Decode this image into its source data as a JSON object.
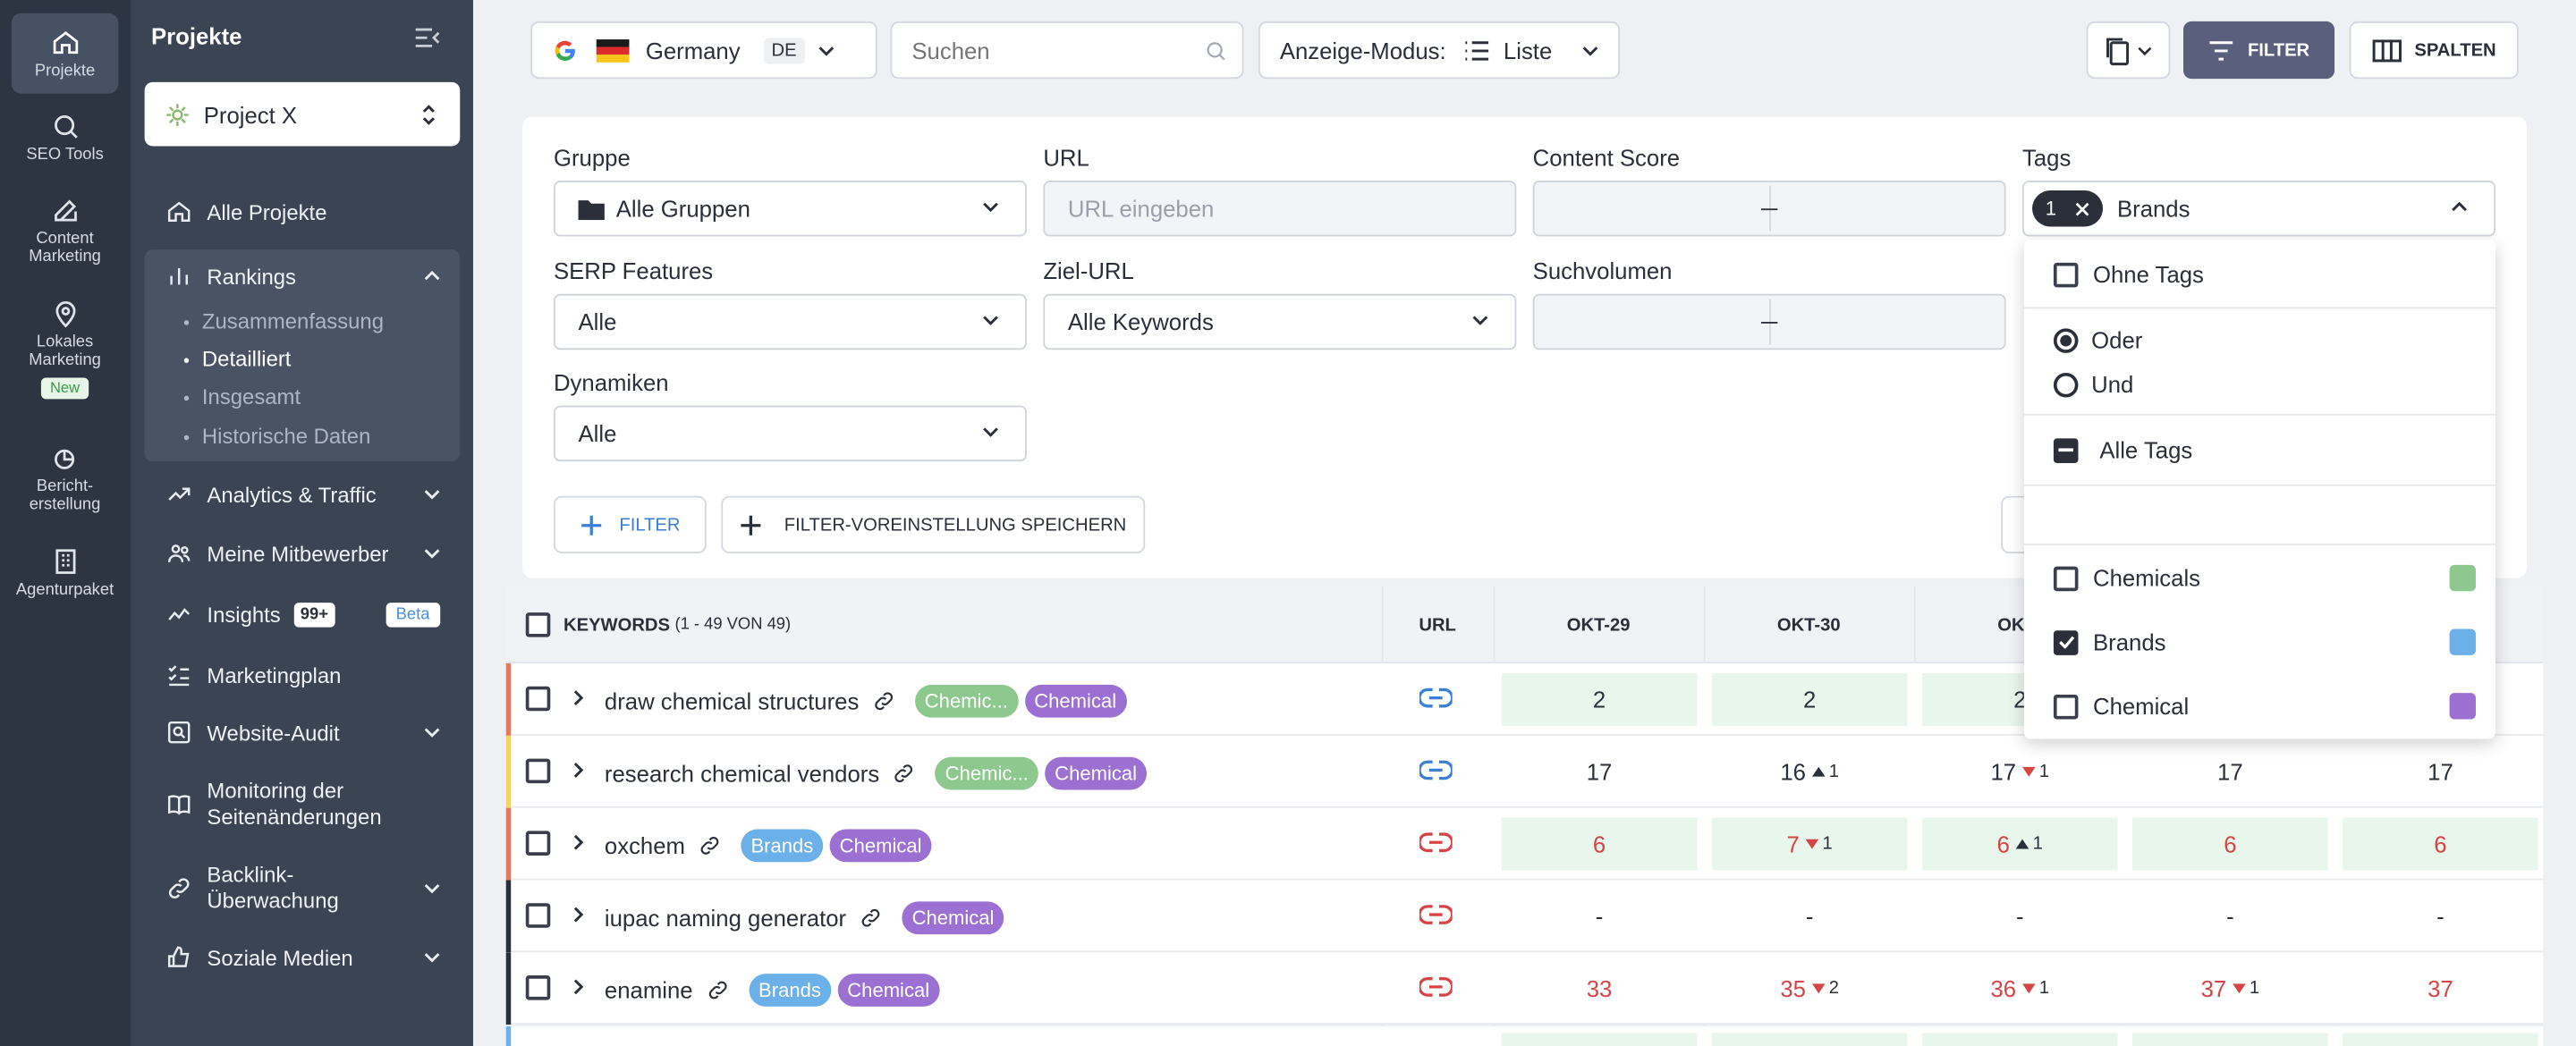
{
  "rail": {
    "items": [
      {
        "label": "Projekte",
        "icon": "home-icon"
      },
      {
        "label": "SEO Tools",
        "icon": "search-icon"
      },
      {
        "label": "Content Marketing",
        "icon": "edit-icon"
      },
      {
        "label": "Lokales Marketing",
        "icon": "map-pin-icon",
        "badge": "New"
      },
      {
        "label": "Bericht-erstellung",
        "icon": "report-icon"
      },
      {
        "label": "Agenturpaket",
        "icon": "building-icon"
      }
    ]
  },
  "sidebar": {
    "title": "Projekte",
    "project": "Project X",
    "nav": {
      "all_projects": "Alle Projekte",
      "rankings": "Rankings",
      "rankings_sub": [
        "Zusammenfassung",
        "Detailliert",
        "Insgesamt",
        "Historische Daten"
      ],
      "analytics": "Analytics & Traffic",
      "competitors": "Meine Mitbewerber",
      "insights": "Insights",
      "insights_badge": "99+",
      "insights_beta": "Beta",
      "marketing_plan": "Marketingplan",
      "website_audit": "Website-Audit",
      "monitoring": "Monitoring der Seitenänderungen",
      "backlinks": "Backlink-Überwachung",
      "social": "Soziale Medien"
    }
  },
  "topbar": {
    "country": "Germany",
    "country_code": "DE",
    "search_placeholder": "Suchen",
    "view_mode_label": "Anzeige-Modus:",
    "view_mode_value": "Liste",
    "filter_button": "FILTER",
    "columns_button": "SPALTEN"
  },
  "filters": {
    "group_label": "Gruppe",
    "group_value": "Alle Gruppen",
    "url_label": "URL",
    "url_placeholder": "URL eingeben",
    "content_score_label": "Content Score",
    "tags_label": "Tags",
    "tags_count": "1",
    "tags_value": "Brands",
    "serp_label": "SERP Features",
    "serp_value": "Alle",
    "target_url_label": "Ziel-URL",
    "target_url_value": "Alle Keywords",
    "volume_label": "Suchvolumen",
    "dynamics_label": "Dynamiken",
    "dynamics_value": "Alle",
    "add_filter": "FILTER",
    "save_preset": "FILTER-VOREINSTELLUNG SPEICHERN"
  },
  "tags_dropdown": {
    "no_tags": "Ohne Tags",
    "or": "Oder",
    "and": "Und",
    "all_tags": "Alle Tags",
    "options": [
      {
        "name": "Chemicals",
        "color": "#8dc98e",
        "checked": false
      },
      {
        "name": "Brands",
        "color": "#6cb0ea",
        "checked": true
      },
      {
        "name": "Chemical",
        "color": "#9c6fd3",
        "checked": false
      }
    ]
  },
  "table": {
    "keywords_header": "KEYWORDS",
    "keywords_count": "(1 - 49 VON 49)",
    "url_header": "URL",
    "date_headers": [
      "OKT-29",
      "OKT-30",
      "OKT-"
    ],
    "rows": [
      {
        "keyword": "draw chemical structures",
        "tags": [
          "Chemic...",
          "Chemical"
        ],
        "values": [
          "2",
          "2",
          "2",
          "",
          ""
        ],
        "deltas": [
          "",
          "",
          "",
          "",
          ""
        ]
      },
      {
        "keyword": "research chemical vendors",
        "tags": [
          "Chemic...",
          "Chemical"
        ],
        "values": [
          "17",
          "16",
          "17",
          "17",
          "17"
        ],
        "deltas": [
          "",
          "1",
          "1",
          "",
          ""
        ]
      },
      {
        "keyword": "oxchem",
        "tags": [
          "Brands",
          "Chemical"
        ],
        "values": [
          "6",
          "7",
          "6",
          "6",
          "6"
        ],
        "deltas": [
          "",
          "1",
          "1",
          "",
          ""
        ]
      },
      {
        "keyword": "iupac naming generator",
        "tags": [
          "Chemical"
        ],
        "values": [
          "-",
          "-",
          "-",
          "-",
          "-"
        ],
        "deltas": [
          "",
          "",
          "",
          "",
          ""
        ]
      },
      {
        "keyword": "enamine",
        "tags": [
          "Brands",
          "Chemical"
        ],
        "values": [
          "33",
          "35",
          "36",
          "37",
          "37"
        ],
        "deltas": [
          "",
          "2",
          "1",
          "1",
          ""
        ]
      }
    ]
  }
}
